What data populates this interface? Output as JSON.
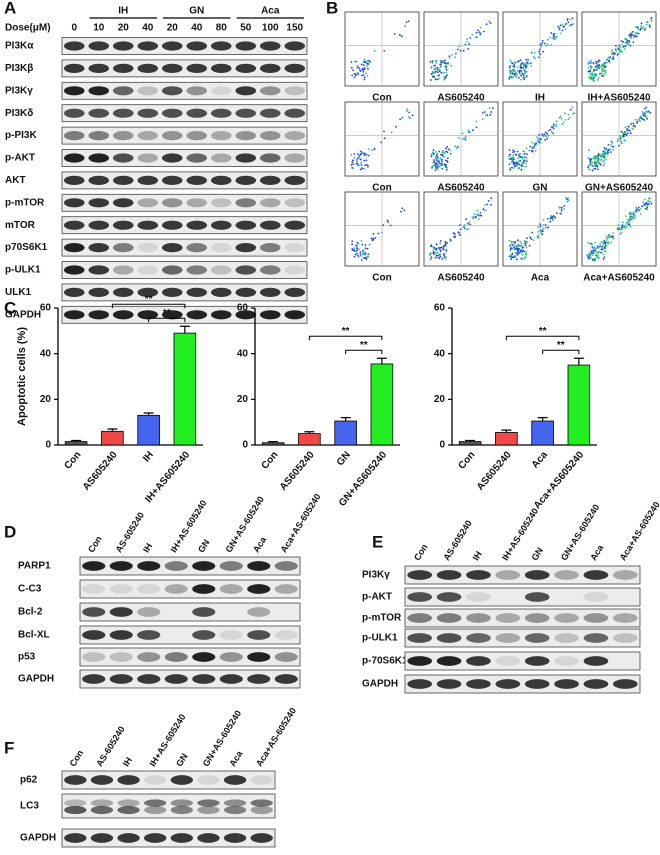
{
  "panels": {
    "A": {
      "letter": "A",
      "dose_label": "Dose(μM)",
      "groups": [
        "IH",
        "GN",
        "Aca"
      ],
      "doses": [
        "0",
        "10",
        "20",
        "40",
        "20",
        "40",
        "80",
        "50",
        "100",
        "150"
      ],
      "rows": [
        "PI3Kα",
        "PI3Kβ",
        "PI3Kγ",
        "PI3Kδ",
        "p-PI3K",
        "p-AKT",
        "AKT",
        "p-mTOR",
        "mTOR",
        "p70S6K1",
        "p-ULK1",
        "ULK1",
        "GAPDH"
      ]
    },
    "B": {
      "letter": "B",
      "labels": [
        [
          "Con",
          "AS605240",
          "IH",
          "IH+AS605240"
        ],
        [
          "Con",
          "AS605240",
          "GN",
          "GN+AS605240"
        ],
        [
          "Con",
          "AS605240",
          "Aca",
          "Aca+AS605240"
        ]
      ]
    },
    "C": {
      "letter": "C"
    },
    "D": {
      "letter": "D",
      "lanes": [
        "Con",
        "AS-605240",
        "IH",
        "IH+AS-605240",
        "GN",
        "GN+AS-605240",
        "Aca",
        "Aca+AS-605240"
      ],
      "rows": [
        "PARP1",
        "C-C3",
        "Bcl-2",
        "Bcl-XL",
        "p53",
        "GAPDH"
      ]
    },
    "E": {
      "letter": "E",
      "lanes": [
        "Con",
        "AS-605240",
        "IH",
        "IH+AS-605240",
        "GN",
        "GN+AS-605240",
        "Aca",
        "Aca+AS-605240"
      ],
      "rows": [
        "PI3Kγ",
        "p-AKT",
        "p-mTOR",
        "p-ULK1",
        "p-70S6K1",
        "GAPDH"
      ]
    },
    "F": {
      "letter": "F",
      "lanes": [
        "Con",
        "AS-605240",
        "IH",
        "IH+AS-605240",
        "GN",
        "GN+AS-605240",
        "Aca",
        "Aca+AS-605240"
      ],
      "rows": [
        "p62",
        "LC3",
        "GAPDH"
      ]
    }
  },
  "chart_data": [
    {
      "type": "bar",
      "ylabel": "Apoptotic cells (%)",
      "categories": [
        "Con",
        "AS605240",
        "IH",
        "IH+AS605240"
      ],
      "values": [
        1.5,
        6,
        13,
        49
      ],
      "errors": [
        0.5,
        1,
        1,
        3
      ],
      "colors": [
        "#555555",
        "#f04848",
        "#4466ee",
        "#22ee22"
      ],
      "ylim": [
        0,
        60
      ],
      "yticks": [
        0,
        20,
        40,
        60
      ],
      "annotations": [
        "**",
        "**"
      ]
    },
    {
      "type": "bar",
      "categories": [
        "Con",
        "AS605240",
        "GN",
        "GN+AS605240"
      ],
      "values": [
        1,
        5,
        10.5,
        35.5
      ],
      "errors": [
        0.5,
        0.8,
        1.5,
        2.5
      ],
      "colors": [
        "#555555",
        "#f04848",
        "#4466ee",
        "#22ee22"
      ],
      "ylim": [
        0,
        60
      ],
      "yticks": [
        0,
        20,
        40,
        60
      ],
      "annotations": [
        "**",
        "**"
      ]
    },
    {
      "type": "bar",
      "categories": [
        "Con",
        "AS605240",
        "Aca",
        "Aca+AS605240"
      ],
      "values": [
        1.5,
        5.5,
        10.5,
        35
      ],
      "errors": [
        0.5,
        1,
        1.5,
        3
      ],
      "colors": [
        "#555555",
        "#f04848",
        "#4466ee",
        "#22ee22"
      ],
      "ylim": [
        0,
        60
      ],
      "yticks": [
        0,
        20,
        40,
        60
      ],
      "annotations": [
        "**",
        "**"
      ]
    }
  ]
}
